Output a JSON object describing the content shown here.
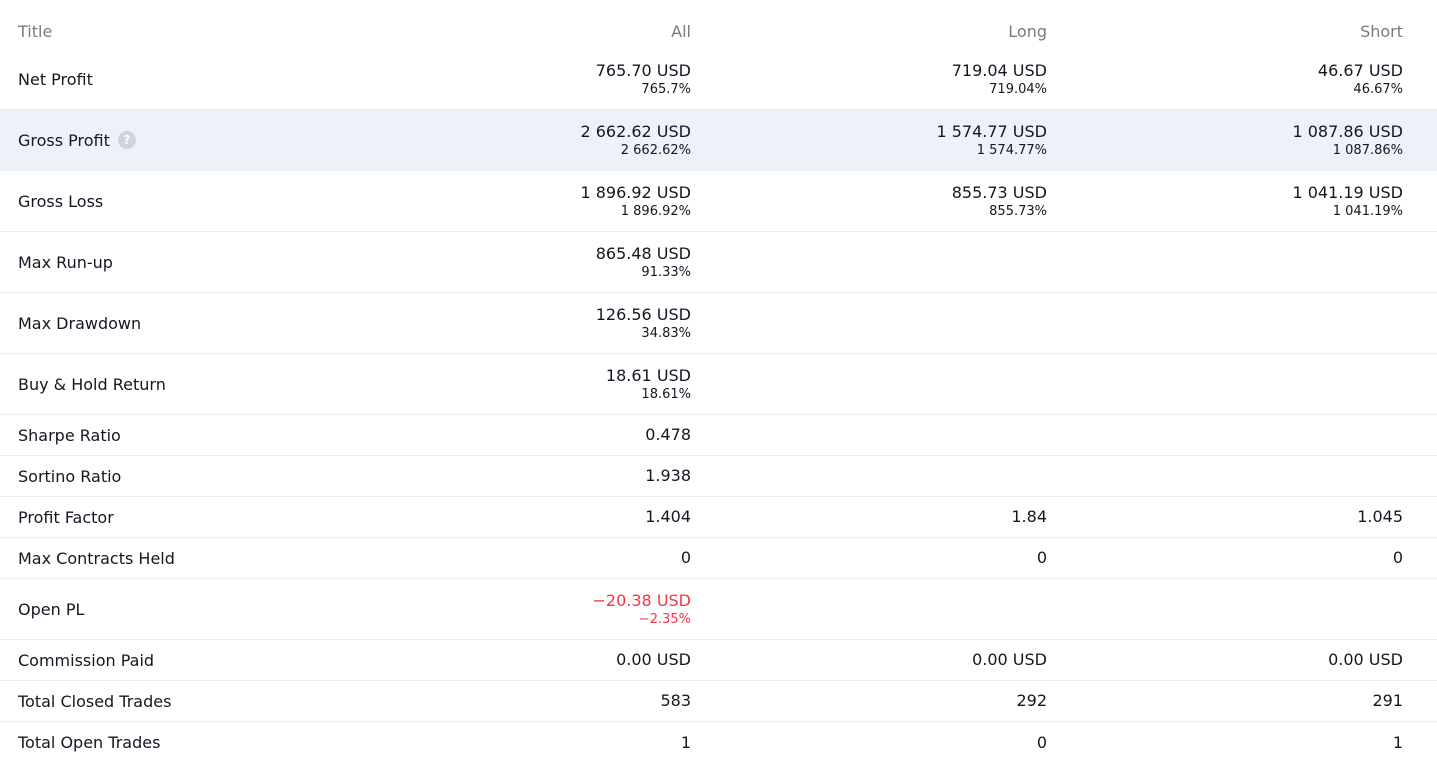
{
  "columns": {
    "title": "Title",
    "all": "All",
    "long": "Long",
    "short": "Short"
  },
  "rows": [
    {
      "title": "Net Profit",
      "all": {
        "main": "765.70 USD",
        "sub": "765.7%"
      },
      "long": {
        "main": "719.04 USD",
        "sub": "719.04%"
      },
      "short": {
        "main": "46.67 USD",
        "sub": "46.67%"
      }
    },
    {
      "title": "Gross Profit",
      "all": {
        "main": "2 662.62 USD",
        "sub": "2 662.62%"
      },
      "long": {
        "main": "1 574.77 USD",
        "sub": "1 574.77%"
      },
      "short": {
        "main": "1 087.86 USD",
        "sub": "1 087.86%"
      }
    },
    {
      "title": "Gross Loss",
      "all": {
        "main": "1 896.92 USD",
        "sub": "1 896.92%"
      },
      "long": {
        "main": "855.73 USD",
        "sub": "855.73%"
      },
      "short": {
        "main": "1 041.19 USD",
        "sub": "1 041.19%"
      }
    },
    {
      "title": "Max Run-up",
      "all": {
        "main": "865.48 USD",
        "sub": "91.33%"
      }
    },
    {
      "title": "Max Drawdown",
      "all": {
        "main": "126.56 USD",
        "sub": "34.83%"
      }
    },
    {
      "title": "Buy & Hold Return",
      "all": {
        "main": "18.61 USD",
        "sub": "18.61%"
      }
    },
    {
      "title": "Sharpe Ratio",
      "all": {
        "main": "0.478"
      }
    },
    {
      "title": "Sortino Ratio",
      "all": {
        "main": "1.938"
      }
    },
    {
      "title": "Profit Factor",
      "all": {
        "main": "1.404"
      },
      "long": {
        "main": "1.84"
      },
      "short": {
        "main": "1.045"
      }
    },
    {
      "title": "Max Contracts Held",
      "all": {
        "main": "0"
      },
      "long": {
        "main": "0"
      },
      "short": {
        "main": "0"
      }
    },
    {
      "title": "Open PL",
      "all": {
        "main": "−20.38 USD",
        "sub": "−2.35%"
      }
    },
    {
      "title": "Commission Paid",
      "all": {
        "main": "0.00 USD"
      },
      "long": {
        "main": "0.00 USD"
      },
      "short": {
        "main": "0.00 USD"
      }
    },
    {
      "title": "Total Closed Trades",
      "all": {
        "main": "583"
      },
      "long": {
        "main": "292"
      },
      "short": {
        "main": "291"
      }
    },
    {
      "title": "Total Open Trades",
      "all": {
        "main": "1"
      },
      "long": {
        "main": "0"
      },
      "short": {
        "main": "1"
      }
    }
  ],
  "help_icon": {
    "glyph": "?"
  },
  "colors": {
    "text": "#131722",
    "header_text": "#787b86",
    "negative": "#f23645",
    "highlight_row": "#eef1f8",
    "divider": "#e9ecf2"
  }
}
